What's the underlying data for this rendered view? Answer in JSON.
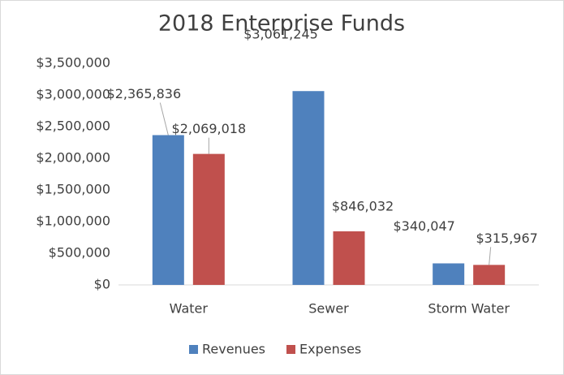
{
  "chart_data": {
    "type": "bar",
    "title": "2018 Enterprise Funds",
    "categories": [
      "Water",
      "Sewer",
      "Storm Water"
    ],
    "series": [
      {
        "name": "Revenues",
        "color": "#4f81bd",
        "values": [
          2365836,
          3061245,
          340047
        ],
        "value_labels": [
          "$2,365,836",
          "$3,061,245",
          "$340,047"
        ]
      },
      {
        "name": "Expenses",
        "color": "#c0504d",
        "values": [
          2069018,
          846032,
          315967
        ],
        "value_labels": [
          "$2,069,018",
          "$846,032",
          "$315,967"
        ]
      }
    ],
    "ylim": [
      0,
      3500000
    ],
    "yticks": [
      {
        "value": 0,
        "label": "$0"
      },
      {
        "value": 500000,
        "label": "$500,000"
      },
      {
        "value": 1000000,
        "label": "$1,000,000"
      },
      {
        "value": 1500000,
        "label": "$1,500,000"
      },
      {
        "value": 2000000,
        "label": "$2,000,000"
      },
      {
        "value": 2500000,
        "label": "$2,500,000"
      },
      {
        "value": 3000000,
        "label": "$3,000,000"
      },
      {
        "value": 3500000,
        "label": "$3,500,000"
      }
    ],
    "grid": false,
    "legend": "bottom"
  }
}
